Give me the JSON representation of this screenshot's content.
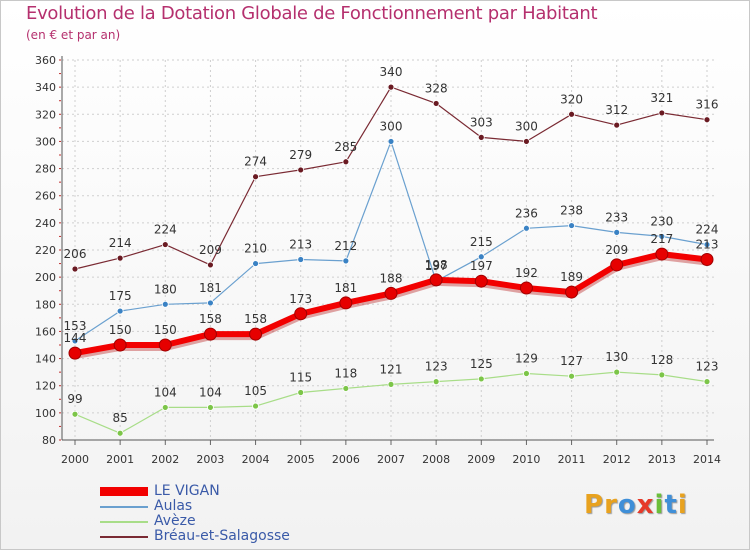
{
  "title": "Evolution de la Dotation Globale de Fonctionnement par Habitant",
  "subtitle": "(en € et par an)",
  "logo": {
    "text": "Proxiti",
    "letters": [
      "P",
      "r",
      "o",
      "x",
      "i",
      "t",
      "i"
    ],
    "colors": [
      "#e8a21f",
      "#e8a21f",
      "#3f8fd8",
      "#e63a2a",
      "#6bbf3a",
      "#3f8fd8",
      "#e8a21f"
    ]
  },
  "chart_data": {
    "type": "line",
    "title": "Evolution de la Dotation Globale de Fonctionnement par Habitant",
    "xlabel": "",
    "ylabel": "(en € et par an)",
    "ylim": [
      80,
      360
    ],
    "ytick_step": 20,
    "yticks": [
      80,
      100,
      120,
      140,
      160,
      180,
      200,
      220,
      240,
      260,
      280,
      300,
      320,
      340,
      360
    ],
    "categories": [
      "2000",
      "2001",
      "2002",
      "2003",
      "2004",
      "2005",
      "2006",
      "2007",
      "2008",
      "2009",
      "2010",
      "2011",
      "2012",
      "2013",
      "2014"
    ],
    "legend_position": "bottom-left",
    "series": [
      {
        "name": "Bréau-et-Salagosse",
        "color": "#7a2a33",
        "dot": "#6a1a22",
        "width": 1.2,
        "values": [
          206,
          214,
          224,
          209,
          274,
          279,
          285,
          340,
          328,
          303,
          300,
          320,
          312,
          321,
          316
        ]
      },
      {
        "name": "Aulas",
        "color": "#6aa0cf",
        "dot": "#3a82c4",
        "width": 1.2,
        "values": [
          153,
          175,
          180,
          181,
          210,
          213,
          212,
          300,
          197,
          215,
          236,
          238,
          233,
          230,
          224
        ]
      },
      {
        "name": "Avèze",
        "color": "#a8dd88",
        "dot": "#7cc548",
        "width": 1.2,
        "values": [
          99,
          85,
          104,
          104,
          105,
          115,
          118,
          121,
          123,
          125,
          129,
          127,
          130,
          128,
          123
        ]
      },
      {
        "name": "LE VIGAN",
        "color": "#f20000",
        "dot": "#e60000",
        "width": 6,
        "values": [
          144,
          150,
          150,
          158,
          158,
          173,
          181,
          188,
          198,
          197,
          192,
          189,
          209,
          217,
          213
        ]
      }
    ],
    "legend_order": [
      "LE VIGAN",
      "Aulas",
      "Avèze",
      "Bréau-et-Salagosse"
    ]
  }
}
